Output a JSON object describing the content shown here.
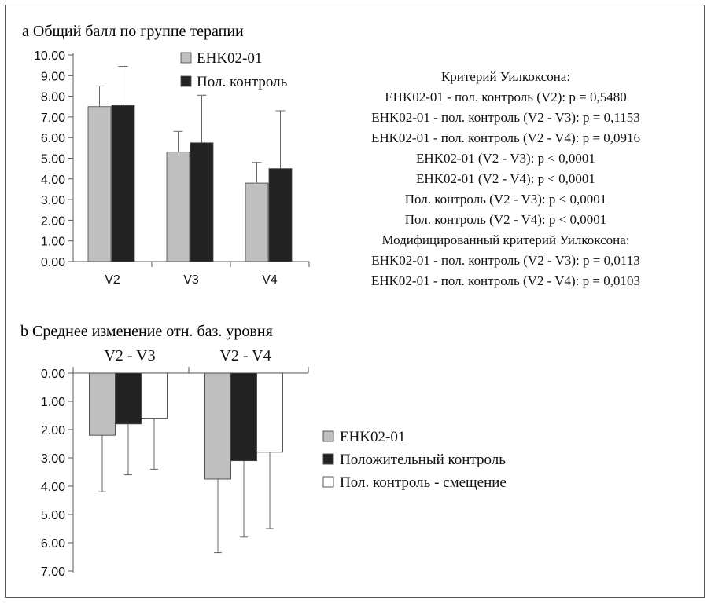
{
  "chart_data": [
    {
      "type": "bar",
      "panel": "a",
      "title": "a Общий балл по группе терапии",
      "categories": [
        "V2",
        "V3",
        "V4"
      ],
      "series": [
        {
          "name": "EHK02-01",
          "color": "#bfbfbf",
          "values": [
            7.5,
            5.3,
            3.8
          ],
          "error_upper": [
            8.5,
            6.3,
            4.8
          ]
        },
        {
          "name": "Пол. контроль",
          "color": "#222222",
          "values": [
            7.55,
            5.75,
            4.5
          ],
          "error_upper": [
            9.45,
            8.05,
            7.3
          ]
        }
      ],
      "ylim": [
        0,
        10
      ],
      "yticks": [
        "10.00",
        "9.00",
        "8.00",
        "7.00",
        "6.00",
        "5.00",
        "4.00",
        "3.00",
        "2.00",
        "1.00",
        "0.00"
      ],
      "legend_position": "top",
      "annotations": [
        "Критерий Уилкоксона:",
        "EHK02-01 - пол. контроль (V2): p = 0,5480",
        "EHK02-01 - пол. контроль (V2 - V3): p = 0,1153",
        "EHK02-01 - пол. контроль (V2 - V4): p = 0,0916",
        "EHK02-01 (V2 - V3): p < 0,0001",
        "EHK02-01 (V2 - V4): p < 0,0001",
        "Пол. контроль (V2 - V3): p < 0,0001",
        "Пол. контроль (V2 - V4): p < 0,0001",
        "Модифицированный критерий Уилкоксона:",
        "EHK02-01 - пол. контроль (V2 - V3): p = 0,0113",
        "EHK02-01 - пол. контроль (V2 - V4): p = 0,0103"
      ]
    },
    {
      "type": "bar",
      "panel": "b",
      "title": "b Среднее изменение отн. баз. уровня",
      "categories": [
        "V2 - V3",
        "V2 - V4"
      ],
      "series": [
        {
          "name": "EHK02-01",
          "color": "#bfbfbf",
          "values": [
            2.2,
            3.75
          ],
          "error_lower": [
            4.2,
            6.35
          ]
        },
        {
          "name": "Положительный контроль",
          "color": "#222222",
          "values": [
            1.8,
            3.1
          ],
          "error_lower": [
            3.6,
            5.8
          ]
        },
        {
          "name": "Пол. контроль - смещение",
          "color": "#ffffff",
          "values": [
            1.6,
            2.8
          ],
          "error_lower": [
            3.4,
            5.5
          ]
        }
      ],
      "ylim": [
        0,
        7
      ],
      "y_axis_inverted": true,
      "yticks": [
        "0.00",
        "1.00",
        "2.00",
        "3.00",
        "4.00",
        "5.00",
        "6.00",
        "7.00"
      ],
      "legend_position": "right"
    }
  ]
}
